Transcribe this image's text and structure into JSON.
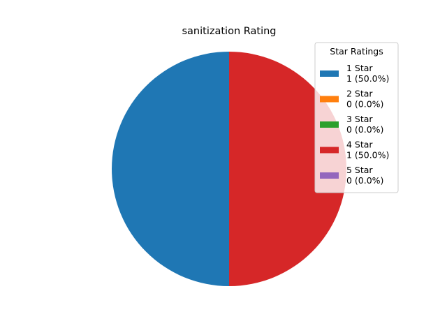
{
  "chart_data": {
    "type": "pie",
    "title": "sanitization Rating",
    "categories": [
      "1 Star",
      "2 Star",
      "3 Star",
      "4 Star",
      "5 Star"
    ],
    "values": [
      1,
      0,
      0,
      1,
      0
    ],
    "legend_labels": [
      "1 (50.0%)",
      "0 (0.0%)",
      "0 (0.0%)",
      "1 (50.0%)",
      "0 (0.0%)"
    ],
    "colors": [
      "#1f77b4",
      "#ff7f0e",
      "#2ca02c",
      "#d62728",
      "#9467bd"
    ],
    "legend": {
      "title": "Star Ratings",
      "placement": "right"
    }
  }
}
